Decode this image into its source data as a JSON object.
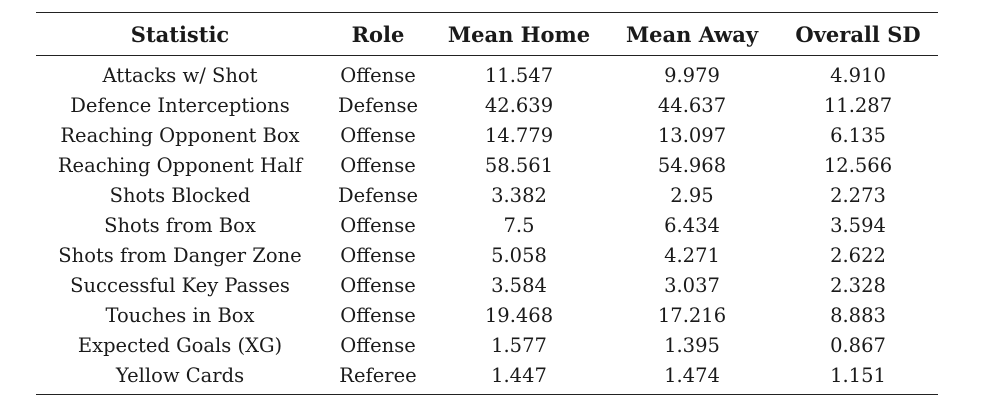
{
  "table": {
    "headers": [
      "Statistic",
      "Role",
      "Mean Home",
      "Mean Away",
      "Overall SD"
    ],
    "rows": [
      [
        "Attacks w/ Shot",
        "Offense",
        "11.547",
        "9.979",
        "4.910"
      ],
      [
        "Defence Interceptions",
        "Defense",
        "42.639",
        "44.637",
        "11.287"
      ],
      [
        "Reaching Opponent Box",
        "Offense",
        "14.779",
        "13.097",
        "6.135"
      ],
      [
        "Reaching Opponent Half",
        "Offense",
        "58.561",
        "54.968",
        "12.566"
      ],
      [
        "Shots Blocked",
        "Defense",
        "3.382",
        "2.95",
        "2.273"
      ],
      [
        "Shots from Box",
        "Offense",
        "7.5",
        "6.434",
        "3.594"
      ],
      [
        "Shots from Danger Zone",
        "Offense",
        "5.058",
        "4.271",
        "2.622"
      ],
      [
        "Successful Key Passes",
        "Offense",
        "3.584",
        "3.037",
        "2.328"
      ],
      [
        "Touches in Box",
        "Offense",
        "19.468",
        "17.216",
        "8.883"
      ],
      [
        "Expected Goals (XG)",
        "Offense",
        "1.577",
        "1.395",
        "0.867"
      ],
      [
        "Yellow Cards",
        "Referee",
        "1.447",
        "1.474",
        "1.151"
      ]
    ]
  }
}
